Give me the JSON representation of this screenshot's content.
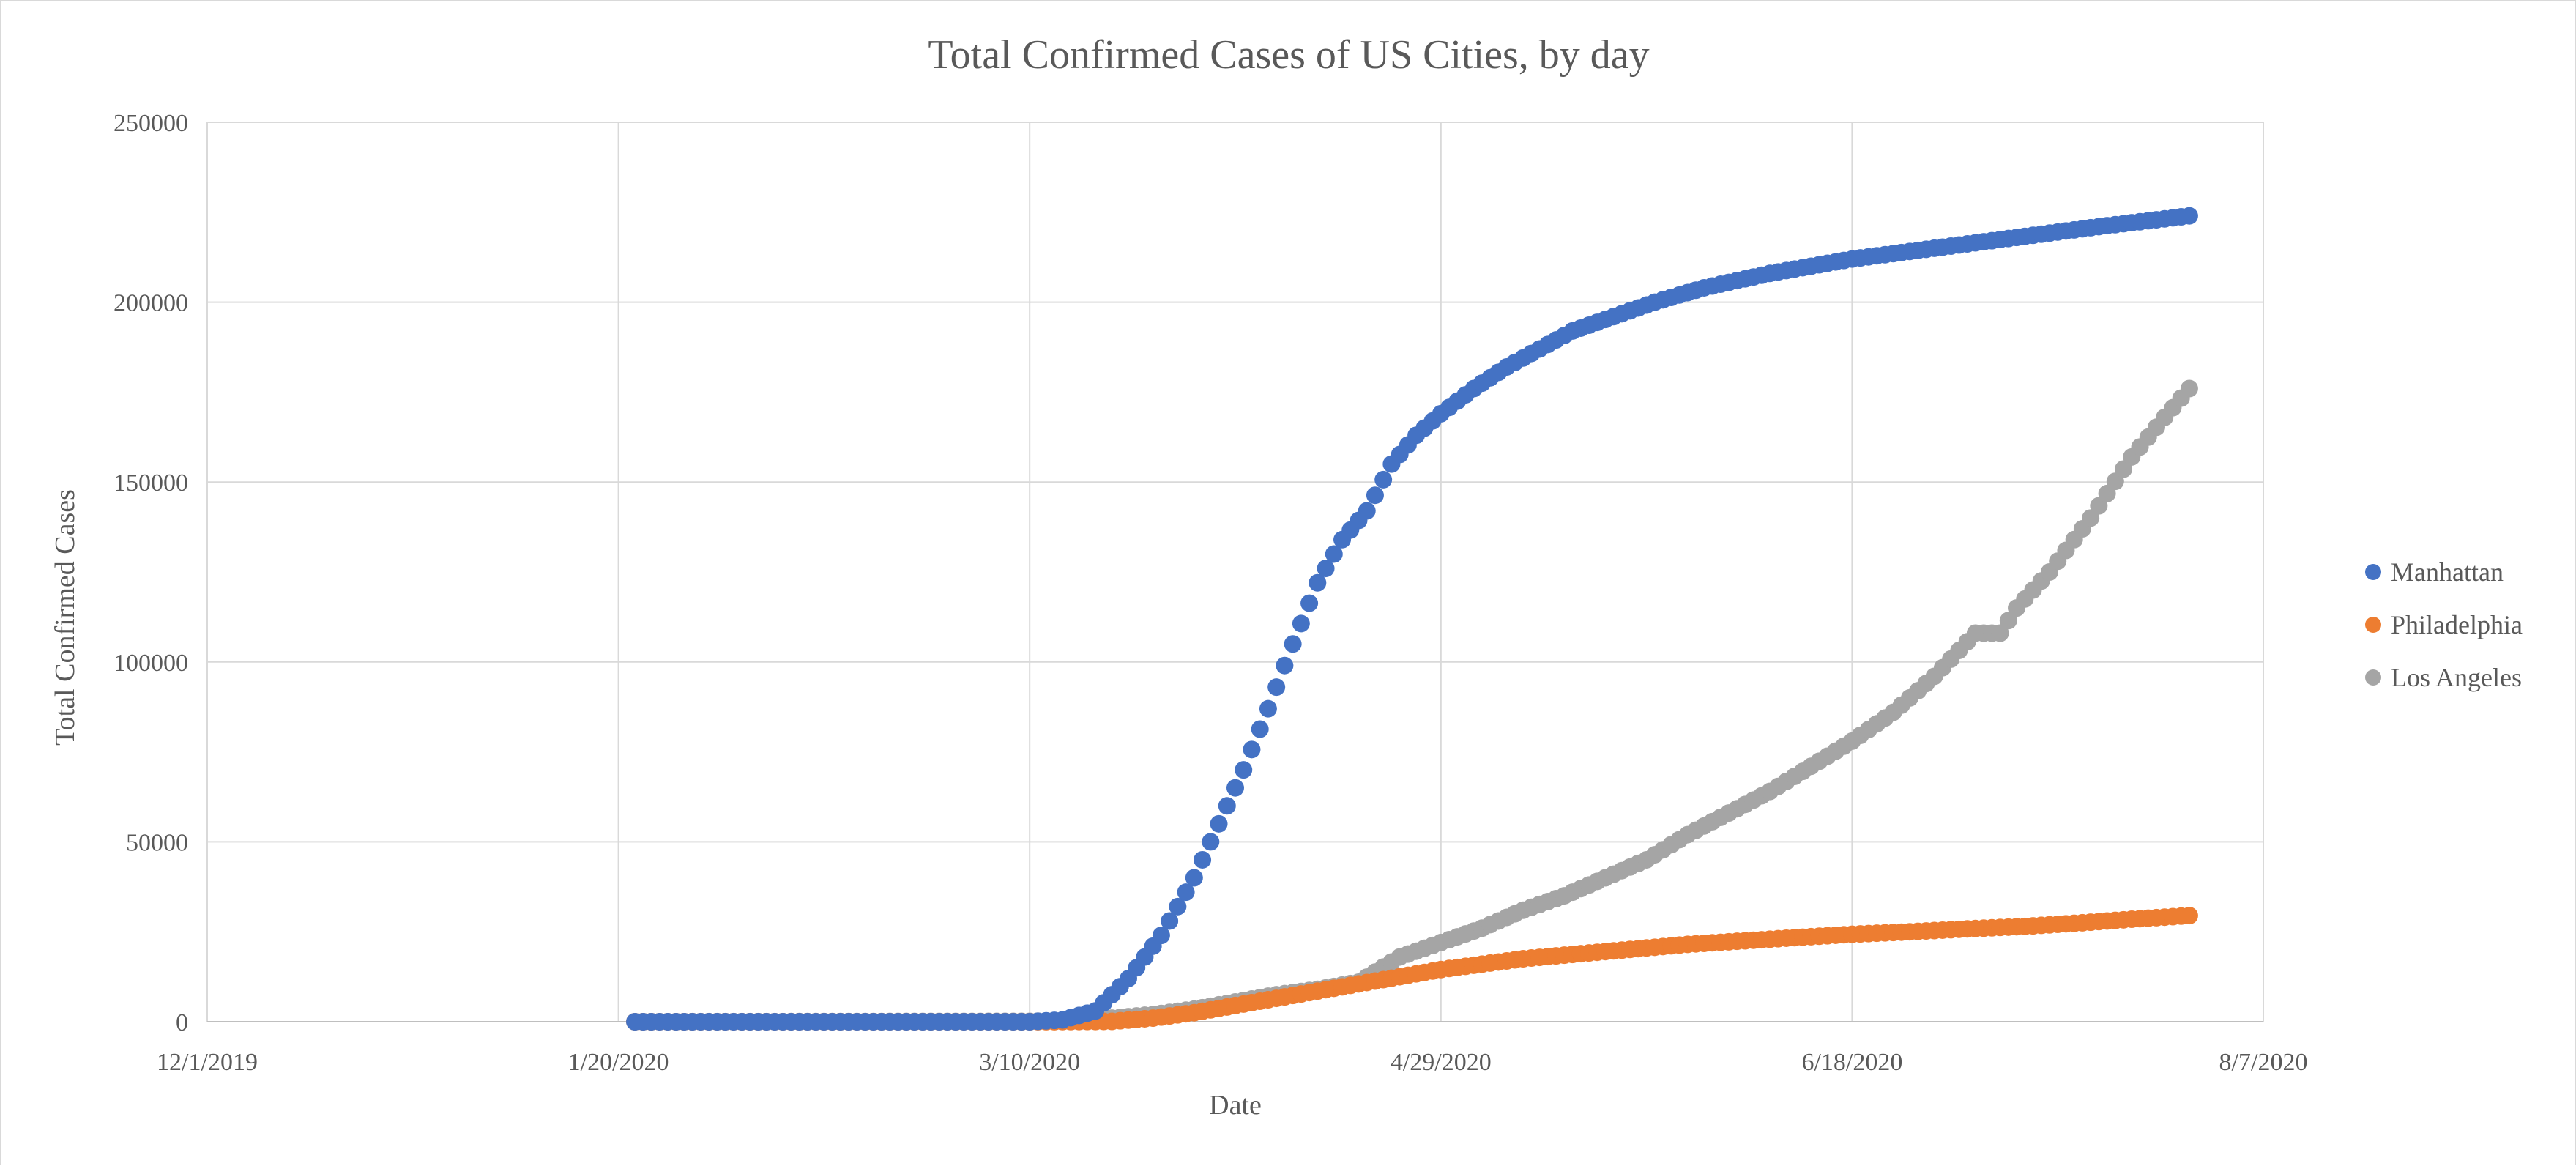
{
  "chart_data": {
    "type": "scatter",
    "title": "Total Confirmed Cases of US Cities, by day",
    "xlabel": "Date",
    "ylabel": "Total Confirmed Cases",
    "xlim": [
      "2019-12-01",
      "2020-08-07"
    ],
    "ylim": [
      0,
      250000
    ],
    "x_ticks": [
      "12/1/2019",
      "1/20/2020",
      "3/10/2020",
      "4/29/2020",
      "6/18/2020",
      "8/7/2020"
    ],
    "y_ticks": [
      0,
      50000,
      100000,
      150000,
      200000,
      250000
    ],
    "grid": true,
    "legend_position": "right",
    "series": [
      {
        "name": "Manhattan",
        "color": "#4472C4",
        "points": [
          [
            "2020-01-22",
            0
          ],
          [
            "2020-03-01",
            0
          ],
          [
            "2020-03-10",
            0
          ],
          [
            "2020-03-14",
            500
          ],
          [
            "2020-03-18",
            3000
          ],
          [
            "2020-03-22",
            12000
          ],
          [
            "2020-03-26",
            24000
          ],
          [
            "2020-03-30",
            40000
          ],
          [
            "2020-04-02",
            55000
          ],
          [
            "2020-04-05",
            70000
          ],
          [
            "2020-04-08",
            87000
          ],
          [
            "2020-04-11",
            105000
          ],
          [
            "2020-04-14",
            122000
          ],
          [
            "2020-04-17",
            134000
          ],
          [
            "2020-04-20",
            142000
          ],
          [
            "2020-04-23",
            155000
          ],
          [
            "2020-04-26",
            163000
          ],
          [
            "2020-04-29",
            169000
          ],
          [
            "2020-05-03",
            176000
          ],
          [
            "2020-05-07",
            182000
          ],
          [
            "2020-05-11",
            187000
          ],
          [
            "2020-05-15",
            192000
          ],
          [
            "2020-05-20",
            196000
          ],
          [
            "2020-05-25",
            200000
          ],
          [
            "2020-05-31",
            204000
          ],
          [
            "2020-06-08",
            208000
          ],
          [
            "2020-06-18",
            212000
          ],
          [
            "2020-06-28",
            215000
          ],
          [
            "2020-07-08",
            218000
          ],
          [
            "2020-07-18",
            221000
          ],
          [
            "2020-07-29",
            224000
          ]
        ]
      },
      {
        "name": "Philadelphia",
        "color": "#ED7D31",
        "points": [
          [
            "2020-01-22",
            0
          ],
          [
            "2020-03-10",
            0
          ],
          [
            "2020-03-20",
            100
          ],
          [
            "2020-03-25",
            1000
          ],
          [
            "2020-03-30",
            2500
          ],
          [
            "2020-04-04",
            4500
          ],
          [
            "2020-04-09",
            6500
          ],
          [
            "2020-04-14",
            8500
          ],
          [
            "2020-04-19",
            10500
          ],
          [
            "2020-04-24",
            12500
          ],
          [
            "2020-04-29",
            14500
          ],
          [
            "2020-05-04",
            16000
          ],
          [
            "2020-05-09",
            17500
          ],
          [
            "2020-05-14",
            18500
          ],
          [
            "2020-05-19",
            19500
          ],
          [
            "2020-05-24",
            20500
          ],
          [
            "2020-05-29",
            21500
          ],
          [
            "2020-06-05",
            22500
          ],
          [
            "2020-06-12",
            23500
          ],
          [
            "2020-06-18",
            24300
          ],
          [
            "2020-06-25",
            25000
          ],
          [
            "2020-07-02",
            25800
          ],
          [
            "2020-07-09",
            26500
          ],
          [
            "2020-07-16",
            27500
          ],
          [
            "2020-07-22",
            28500
          ],
          [
            "2020-07-29",
            29500
          ]
        ]
      },
      {
        "name": "Los Angeles",
        "color": "#A5A5A5",
        "points": [
          [
            "2020-01-22",
            0
          ],
          [
            "2020-03-10",
            100
          ],
          [
            "2020-03-15",
            400
          ],
          [
            "2020-03-20",
            1000
          ],
          [
            "2020-03-25",
            2000
          ],
          [
            "2020-03-30",
            3500
          ],
          [
            "2020-04-04",
            5500
          ],
          [
            "2020-04-09",
            7500
          ],
          [
            "2020-04-14",
            9000
          ],
          [
            "2020-04-19",
            11000
          ],
          [
            "2020-04-24",
            18000
          ],
          [
            "2020-04-29",
            22000
          ],
          [
            "2020-05-04",
            26000
          ],
          [
            "2020-05-09",
            31000
          ],
          [
            "2020-05-14",
            35000
          ],
          [
            "2020-05-19",
            40000
          ],
          [
            "2020-05-24",
            45000
          ],
          [
            "2020-05-29",
            52000
          ],
          [
            "2020-06-03",
            58000
          ],
          [
            "2020-06-08",
            64000
          ],
          [
            "2020-06-13",
            71000
          ],
          [
            "2020-06-18",
            78000
          ],
          [
            "2020-06-23",
            86000
          ],
          [
            "2020-06-28",
            96000
          ],
          [
            "2020-07-03",
            108000
          ],
          [
            "2020-07-06",
            108000
          ],
          [
            "2020-07-08",
            115000
          ],
          [
            "2020-07-12",
            125000
          ],
          [
            "2020-07-17",
            140000
          ],
          [
            "2020-07-22",
            157000
          ],
          [
            "2020-07-26",
            168000
          ],
          [
            "2020-07-29",
            176000
          ]
        ]
      }
    ]
  }
}
